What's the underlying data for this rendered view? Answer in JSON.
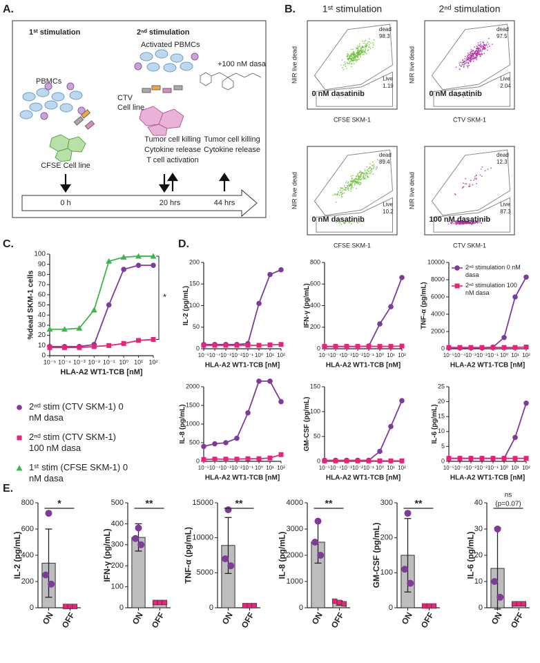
{
  "panel_labels": [
    "A.",
    "B.",
    "C.",
    "D.",
    "E."
  ],
  "panel_a": {
    "stim1": "1ˢᵗ stimulation",
    "stim2": "2ⁿᵈ stimulation",
    "activated": "Activated PBMCs",
    "dasa": "+100 nM dasa",
    "pbmcs": "PBMCs",
    "ctv": [
      "CTV",
      "Cell line"
    ],
    "cfse": "CFSE Cell line",
    "readout_20": [
      "Tumor cell killing",
      "Cytokine release",
      "T cell activation"
    ],
    "readout_44": [
      "Tumor cell killing",
      "Cytokine release"
    ],
    "timeline": [
      "0 h",
      "20 hrs",
      "44 hrs"
    ]
  },
  "panel_b": {
    "columns": [
      "1ˢᵗ stimulation",
      "2ⁿᵈ stimulation"
    ],
    "plots": [
      {
        "y_label": "NIR live dead",
        "x_label": "CFSE SKM-1",
        "condition": "0 nM dasatinib",
        "dead_label": "dead",
        "dead": 98.3,
        "live_label": "Live",
        "live": 1.19,
        "color": "#6cbf3a"
      },
      {
        "y_label": "NIR live dead",
        "x_label": "CTV SKM-1",
        "condition": "0 nM dasatinib",
        "dead_label": "dead",
        "dead": 97.5,
        "live_label": "Live",
        "live": 2.04,
        "color": "#b0289f"
      },
      {
        "y_label": "NIR live dead",
        "x_label": "CFSE SKM-1",
        "condition": "0 nM dasatinib",
        "dead_label": "dead",
        "dead": 89.4,
        "live_label": "Live",
        "live": 10.2,
        "color": "#6cbf3a"
      },
      {
        "y_label": "NIR live dead",
        "x_label": "CTV SKM-1",
        "condition": "100 nM dasatinib",
        "dead_label": "dead",
        "dead": 12.3,
        "live_label": "Live",
        "live": 87.3,
        "color": "#b0289f"
      }
    ]
  },
  "chart_data": [
    {
      "type": "line",
      "y_label": "%dead SKM-1 cells",
      "x_label": "HLA-A2 WT1-TCB [nM]",
      "log_x": true,
      "xlim": [
        1e-05,
        100
      ],
      "xticks": [
        {
          "value": 1e-05,
          "label": "10⁻⁵"
        },
        {
          "value": 0.0001,
          "label": "10⁻⁴"
        },
        {
          "value": 0.001,
          "label": "10⁻³"
        },
        {
          "value": 0.01,
          "label": "10⁻²"
        },
        {
          "value": 0.1,
          "label": "10⁻¹"
        },
        {
          "value": 1,
          "label": "10⁰"
        },
        {
          "value": 10,
          "label": "10¹"
        },
        {
          "value": 100,
          "label": "10²"
        }
      ],
      "ylim": [
        0,
        100
      ],
      "yticks": [
        0,
        10,
        20,
        30,
        40,
        50,
        60,
        70,
        80,
        90,
        100
      ],
      "x": [
        1e-05,
        0.0001,
        0.001,
        0.01,
        0.1,
        1,
        10,
        100
      ],
      "series": [
        {
          "name": "2ⁿᵈ stim (CTV SKM-1) 0 nM dasa",
          "color": "#7d3c98",
          "marker": "circle",
          "values": [
            9,
            9,
            9,
            11,
            50,
            85,
            89,
            89
          ]
        },
        {
          "name": "2ⁿᵈ stim (CTV SKM-1) 100 nM dasa",
          "color": "#e8247a",
          "marker": "square",
          "values": [
            8,
            8,
            8,
            9,
            10,
            12,
            15,
            16
          ]
        },
        {
          "name": "1ˢᵗ stim (CFSE SKM-1) 0 nM dasa",
          "color": "#3cb54a",
          "marker": "triangle",
          "values": [
            26,
            26,
            27,
            45,
            93,
            97,
            98,
            98
          ]
        }
      ],
      "significance": [
        "*"
      ]
    },
    {
      "type": "line",
      "y_label": "IL-2 (pg/mL)",
      "x_label": "HLA-A2 WT1-TCB [nM]",
      "log_x": true,
      "xlim": [
        1e-05,
        100
      ],
      "xticks": [
        {
          "value": 1e-05,
          "label": "10⁻⁵"
        },
        {
          "value": 0.0001,
          "label": "10⁻⁴"
        },
        {
          "value": 0.001,
          "label": "10⁻³"
        },
        {
          "value": 0.01,
          "label": "10⁻²"
        },
        {
          "value": 0.1,
          "label": "10⁻¹"
        },
        {
          "value": 1,
          "label": "10⁰"
        },
        {
          "value": 10,
          "label": "10¹"
        },
        {
          "value": 100,
          "label": "10²"
        }
      ],
      "ylim": [
        0,
        200
      ],
      "yticks": [
        0,
        50,
        100,
        150,
        200
      ],
      "x": [
        1e-05,
        0.0001,
        0.001,
        0.01,
        0.1,
        1,
        10,
        100
      ],
      "series": [
        {
          "color": "#7d3c98",
          "marker": "circle",
          "values": [
            10,
            10,
            10,
            10,
            12,
            105,
            172,
            183
          ]
        },
        {
          "color": "#e8247a",
          "marker": "square",
          "values": [
            8,
            8,
            8,
            8,
            8,
            8,
            9,
            10
          ]
        }
      ]
    },
    {
      "type": "line",
      "y_label": "IFN-γ (pg/mL)",
      "x_label": "HLA-A2 WT1-TCB [nM]",
      "log_x": true,
      "xlim": [
        1e-05,
        100
      ],
      "xticks": [
        {
          "value": 1e-05,
          "label": "10⁻⁵"
        },
        {
          "value": 0.0001,
          "label": "10⁻⁴"
        },
        {
          "value": 0.001,
          "label": "10⁻³"
        },
        {
          "value": 0.01,
          "label": "10⁻²"
        },
        {
          "value": 0.1,
          "label": "10⁻¹"
        },
        {
          "value": 1,
          "label": "10⁰"
        },
        {
          "value": 10,
          "label": "10¹"
        },
        {
          "value": 100,
          "label": "10²"
        }
      ],
      "ylim": [
        0,
        800
      ],
      "yticks": [
        0,
        200,
        400,
        600,
        800
      ],
      "x": [
        1e-05,
        0.0001,
        0.001,
        0.01,
        0.1,
        1,
        10,
        100
      ],
      "series": [
        {
          "color": "#7d3c98",
          "marker": "circle",
          "values": [
            20,
            20,
            20,
            20,
            25,
            230,
            390,
            660
          ]
        },
        {
          "color": "#e8247a",
          "marker": "square",
          "values": [
            22,
            22,
            22,
            22,
            22,
            22,
            22,
            25
          ]
        }
      ]
    },
    {
      "type": "line",
      "y_label": "TNF-α (pg/mL)",
      "x_label": "HLA-A2 WT1-TCB [nM]",
      "log_x": true,
      "xlim": [
        1e-05,
        100
      ],
      "xticks": [
        {
          "value": 1e-05,
          "label": "10⁻⁵"
        },
        {
          "value": 0.0001,
          "label": "10⁻⁴"
        },
        {
          "value": 0.001,
          "label": "10⁻³"
        },
        {
          "value": 0.01,
          "label": "10⁻²"
        },
        {
          "value": 0.1,
          "label": "10⁻¹"
        },
        {
          "value": 1,
          "label": "10⁰"
        },
        {
          "value": 10,
          "label": "10¹"
        },
        {
          "value": 100,
          "label": "10²"
        }
      ],
      "ylim": [
        0,
        10000
      ],
      "yticks": [
        0,
        2000,
        4000,
        6000,
        8000,
        10000
      ],
      "x": [
        1e-05,
        0.0001,
        0.001,
        0.01,
        0.1,
        1,
        10,
        100
      ],
      "series": [
        {
          "name": "2ⁿᵈ stimulation 0 nM dasa",
          "color": "#7d3c98",
          "marker": "circle",
          "values": [
            100,
            100,
            100,
            100,
            200,
            1300,
            6000,
            8300
          ]
        },
        {
          "name": "2ⁿᵈ stimulation 100 nM dasa",
          "color": "#e8247a",
          "marker": "square",
          "values": [
            150,
            150,
            150,
            150,
            150,
            150,
            150,
            200
          ]
        }
      ],
      "legend": "upper left"
    },
    {
      "type": "line",
      "y_label": "IL-8 (pg/mL)",
      "x_label": "HLA-A2 WT1-TCB [nM]",
      "log_x": true,
      "xlim": [
        1e-05,
        100
      ],
      "xticks": [
        {
          "value": 1e-05,
          "label": "10⁻⁵"
        },
        {
          "value": 0.0001,
          "label": "10⁻⁴"
        },
        {
          "value": 0.001,
          "label": "10⁻³"
        },
        {
          "value": 0.01,
          "label": "10⁻²"
        },
        {
          "value": 0.1,
          "label": "10⁻¹"
        },
        {
          "value": 1,
          "label": "10⁰"
        },
        {
          "value": 10,
          "label": "10¹"
        },
        {
          "value": 100,
          "label": "10²"
        }
      ],
      "ylim": [
        0,
        2000
      ],
      "yticks": [
        0,
        500,
        1000,
        1500,
        2000
      ],
      "x": [
        1e-05,
        0.0001,
        0.001,
        0.01,
        0.1,
        1,
        10,
        100
      ],
      "series": [
        {
          "color": "#7d3c98",
          "marker": "circle",
          "values": [
            400,
            470,
            500,
            620,
            1300,
            2150,
            2150,
            1600
          ]
        },
        {
          "color": "#e8247a",
          "marker": "square",
          "values": [
            50,
            60,
            60,
            60,
            70,
            70,
            90,
            180
          ]
        }
      ]
    },
    {
      "type": "line",
      "y_label": "GM-CSF (pg/mL)",
      "x_label": "HLA-A2 WT1-TCB [nM]",
      "log_x": true,
      "xlim": [
        1e-05,
        100
      ],
      "xticks": [
        {
          "value": 1e-05,
          "label": "10⁻⁵"
        },
        {
          "value": 0.0001,
          "label": "10⁻⁴"
        },
        {
          "value": 0.001,
          "label": "10⁻³"
        },
        {
          "value": 0.01,
          "label": "10⁻²"
        },
        {
          "value": 0.1,
          "label": "10⁻¹"
        },
        {
          "value": 1,
          "label": "10⁰"
        },
        {
          "value": 10,
          "label": "10¹"
        },
        {
          "value": 100,
          "label": "10²"
        }
      ],
      "ylim": [
        0,
        150
      ],
      "yticks": [
        0,
        50,
        100,
        150
      ],
      "x": [
        1e-05,
        0.0001,
        0.001,
        0.01,
        0.1,
        1,
        10,
        100
      ],
      "series": [
        {
          "color": "#7d3c98",
          "marker": "circle",
          "values": [
            2,
            2,
            2,
            2,
            2,
            20,
            70,
            122
          ]
        },
        {
          "color": "#e8247a",
          "marker": "square",
          "values": [
            1,
            1,
            1,
            1,
            1,
            1,
            1,
            1
          ]
        }
      ]
    },
    {
      "type": "line",
      "y_label": "IL-6 (pg/mL)",
      "x_label": "HLA-A2 WT1-TCB [nM]",
      "log_x": true,
      "xlim": [
        1e-05,
        100
      ],
      "xticks": [
        {
          "value": 1e-05,
          "label": "10⁻⁵"
        },
        {
          "value": 0.0001,
          "label": "10⁻⁴"
        },
        {
          "value": 0.001,
          "label": "10⁻³"
        },
        {
          "value": 0.01,
          "label": "10⁻²"
        },
        {
          "value": 0.1,
          "label": "10⁻¹"
        },
        {
          "value": 1,
          "label": "10⁰"
        },
        {
          "value": 10,
          "label": "10¹"
        },
        {
          "value": 100,
          "label": "10²"
        }
      ],
      "ylim": [
        0,
        25
      ],
      "yticks": [
        0,
        5,
        10,
        15,
        20,
        25
      ],
      "x": [
        1e-05,
        0.0001,
        0.001,
        0.01,
        0.1,
        1,
        10,
        100
      ],
      "series": [
        {
          "color": "#7d3c98",
          "marker": "circle",
          "values": [
            1,
            1,
            1,
            1,
            1,
            1,
            8,
            19.5
          ]
        },
        {
          "color": "#e8247a",
          "marker": "square",
          "values": [
            1,
            1,
            1,
            1,
            1,
            1,
            1,
            1
          ]
        }
      ]
    },
    {
      "type": "bar",
      "y_label": "IL-2 (pg/mL)",
      "categories": [
        "ON",
        "OFF"
      ],
      "values": [
        340,
        10
      ],
      "errors": [
        260,
        0
      ],
      "points": [
        [
          720,
          250,
          180
        ],
        [
          10,
          10,
          10
        ]
      ],
      "bar_color": "#bdbdbd",
      "point_colors": [
        "#7d3c98",
        "#e8247a"
      ],
      "ylim": [
        0,
        800
      ],
      "yticks": [
        0,
        200,
        400,
        600,
        800
      ],
      "significance": [
        "*"
      ]
    },
    {
      "type": "bar",
      "y_label": "IFN-γ (pg/mL)",
      "categories": [
        "ON",
        "OFF"
      ],
      "values": [
        335,
        25
      ],
      "errors": [
        65,
        0
      ],
      "points": [
        [
          380,
          330,
          300
        ],
        [
          25,
          25,
          25
        ]
      ],
      "bar_color": "#bdbdbd",
      "point_colors": [
        "#7d3c98",
        "#e8247a"
      ],
      "ylim": [
        0,
        500
      ],
      "yticks": [
        0,
        100,
        200,
        300,
        400,
        500
      ],
      "significance": [
        "**"
      ]
    },
    {
      "type": "bar",
      "y_label": "TNF-α (pg/mL)",
      "categories": [
        "ON",
        "OFF"
      ],
      "values": [
        8900,
        300
      ],
      "errors": [
        4000,
        0
      ],
      "points": [
        [
          14000,
          7000,
          6000
        ],
        [
          300,
          300,
          300
        ]
      ],
      "bar_color": "#bdbdbd",
      "point_colors": [
        "#7d3c98",
        "#e8247a"
      ],
      "ylim": [
        0,
        15000
      ],
      "yticks": [
        0,
        5000,
        10000,
        15000
      ],
      "significance": [
        "**"
      ]
    },
    {
      "type": "bar",
      "y_label": "IL-8 (pg/mL)",
      "categories": [
        "ON",
        "OFF"
      ],
      "values": [
        2500,
        180
      ],
      "errors": [
        800,
        80
      ],
      "points": [
        [
          3300,
          2500,
          2000
        ],
        [
          250,
          200,
          150
        ]
      ],
      "bar_color": "#bdbdbd",
      "point_colors": [
        "#7d3c98",
        "#e8247a"
      ],
      "ylim": [
        0,
        4000
      ],
      "yticks": [
        0,
        1000,
        2000,
        3000,
        4000
      ],
      "significance": [
        "**"
      ]
    },
    {
      "type": "bar",
      "y_label": "GM-CSF (pg/mL)",
      "categories": [
        "ON",
        "OFF"
      ],
      "values": [
        150,
        5
      ],
      "errors": [
        105,
        0
      ],
      "points": [
        [
          270,
          110,
          70
        ],
        [
          5,
          5,
          5
        ]
      ],
      "bar_color": "#bdbdbd",
      "point_colors": [
        "#7d3c98",
        "#e8247a"
      ],
      "ylim": [
        0,
        300
      ],
      "yticks": [
        0,
        100,
        200,
        300
      ],
      "significance": [
        "**"
      ]
    },
    {
      "type": "bar",
      "y_label": "IL-6 (pg/mL)",
      "categories": [
        "ON",
        "OFF"
      ],
      "values": [
        15,
        1.5
      ],
      "errors": [
        15.5,
        0
      ],
      "points": [
        [
          30,
          10,
          4
        ],
        [
          1.5,
          1.5,
          1.5
        ]
      ],
      "bar_color": "#bdbdbd",
      "point_colors": [
        "#7d3c98",
        "#e8247a"
      ],
      "ylim": [
        0,
        40
      ],
      "yticks": [
        0,
        10,
        20,
        30,
        40
      ],
      "significance": [
        "ns",
        "(p=0.07)"
      ]
    }
  ]
}
